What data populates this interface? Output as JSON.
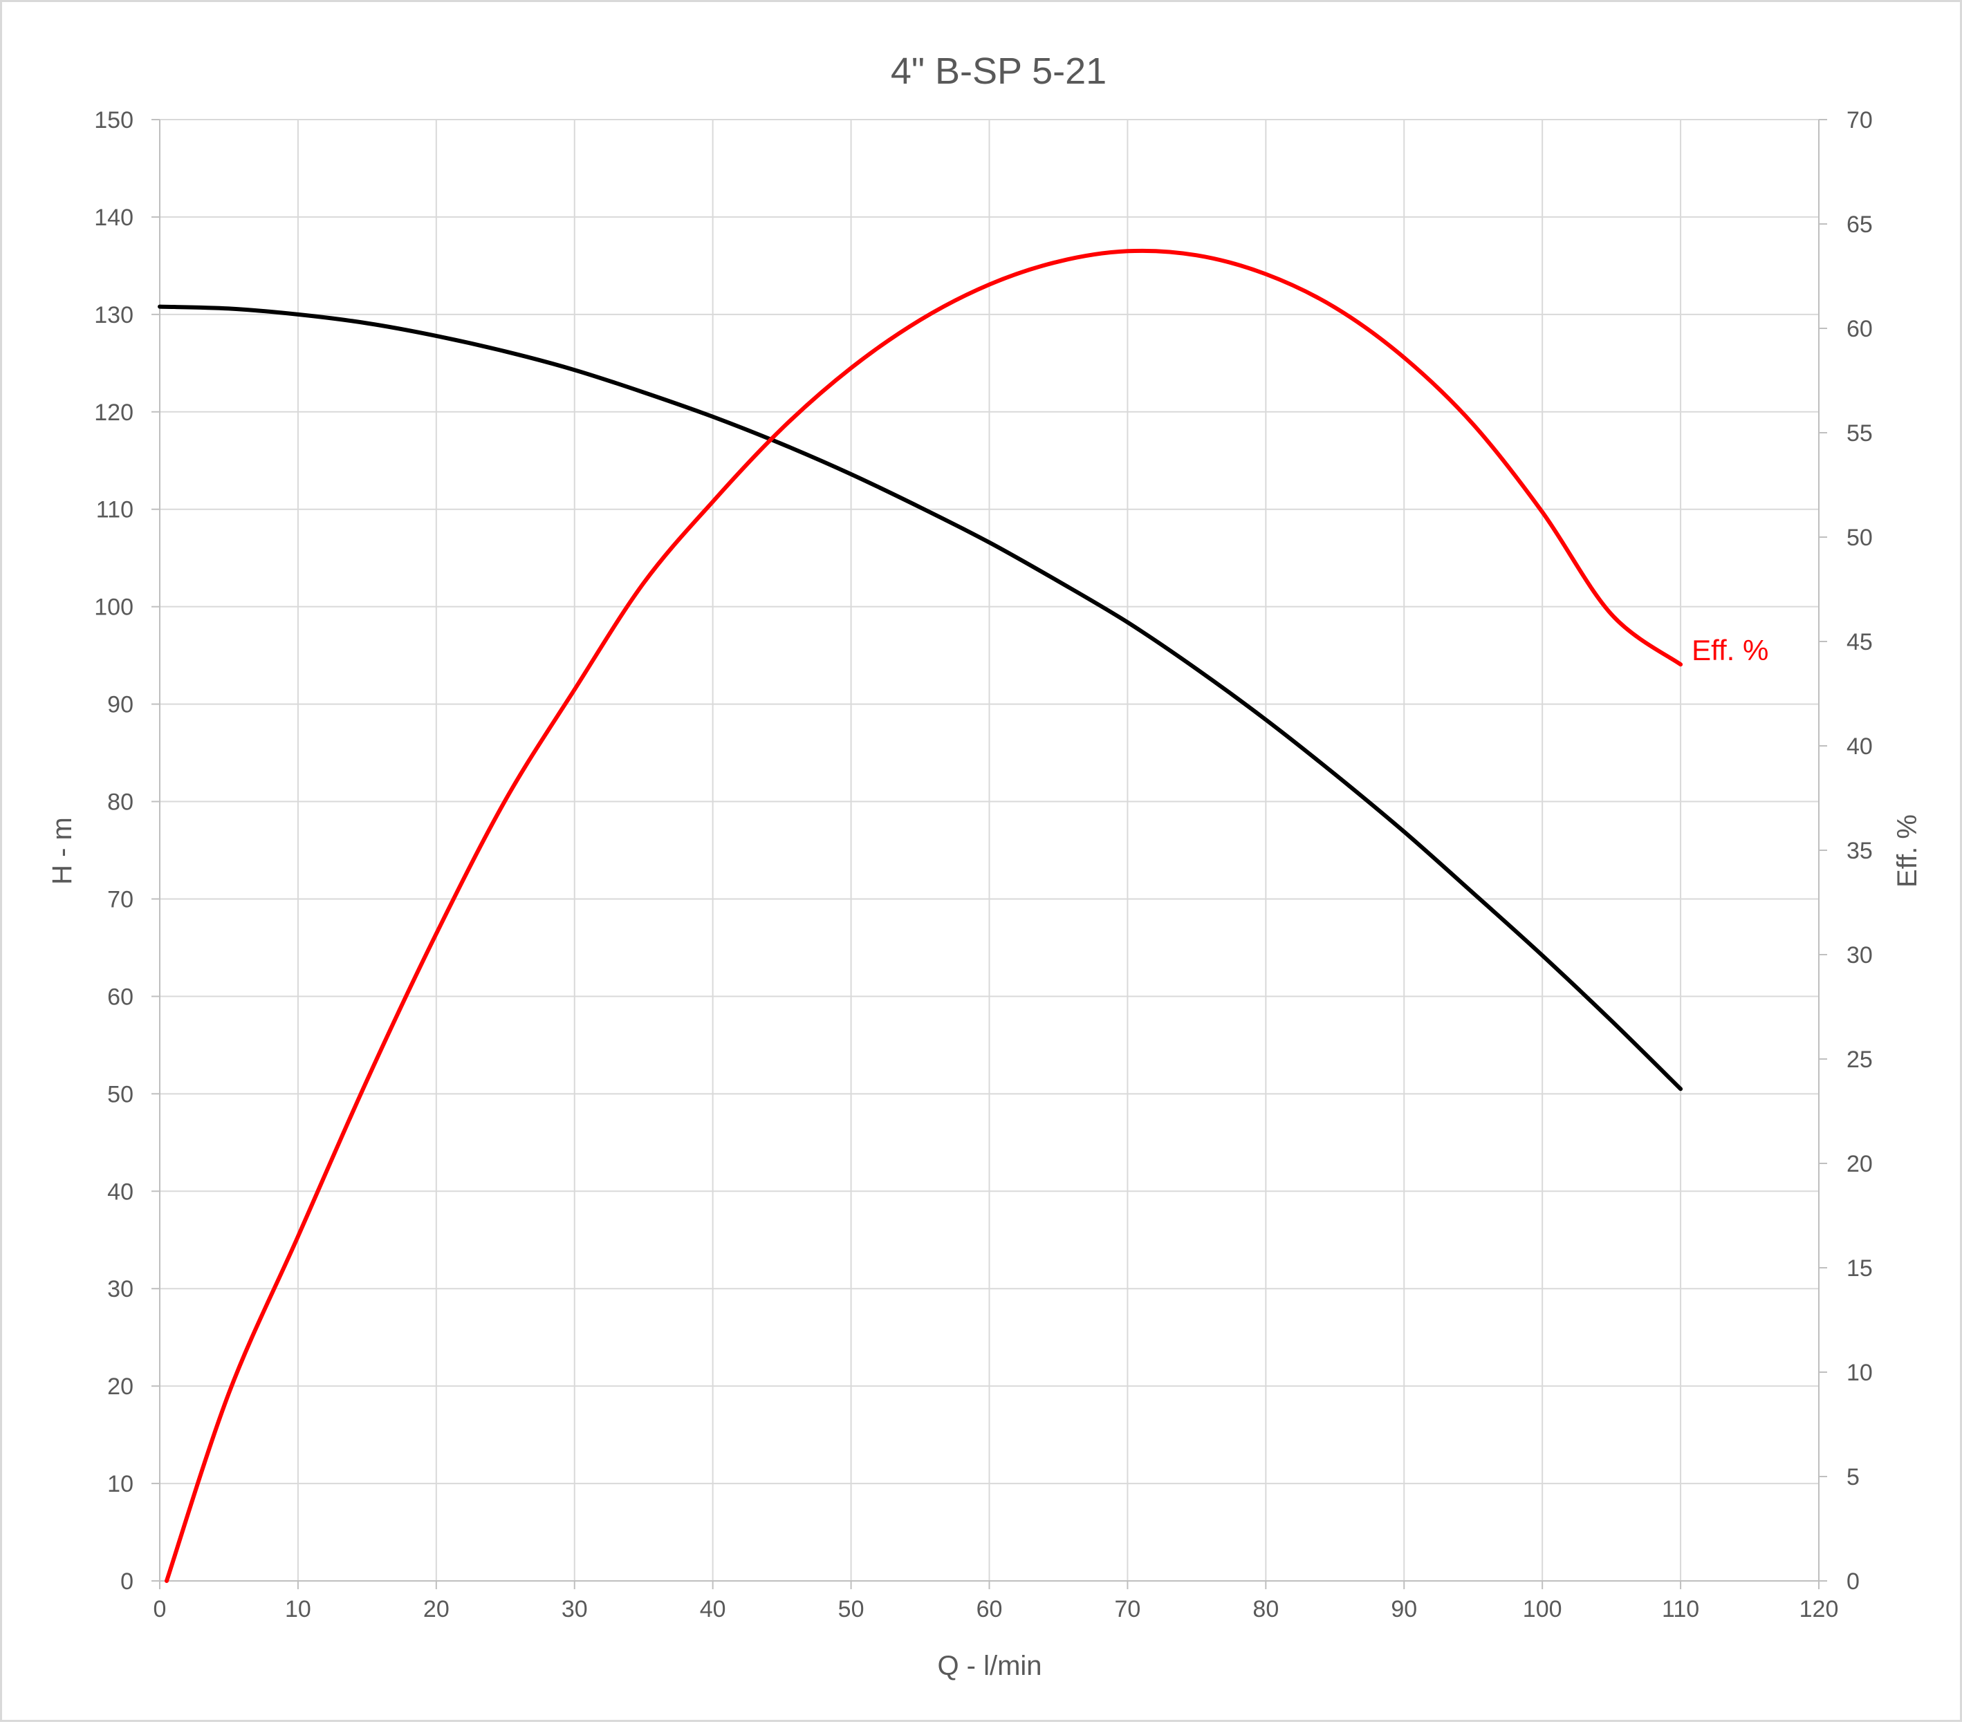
{
  "chart_data": {
    "type": "line",
    "title": "4\" B-SP 5-21",
    "xlabel": "Q - l/min",
    "ylabel": "H - m",
    "y2label": "Eff. %",
    "xlim": [
      0,
      120
    ],
    "ylim": [
      0,
      150
    ],
    "y2lim": [
      0,
      70
    ],
    "x_ticks": [
      "0",
      "10",
      "20",
      "30",
      "40",
      "50",
      "60",
      "70",
      "80",
      "90",
      "100",
      "110",
      "120"
    ],
    "y_ticks": [
      "0",
      "10",
      "20",
      "30",
      "40",
      "50",
      "60",
      "70",
      "80",
      "90",
      "100",
      "110",
      "120",
      "130",
      "140",
      "150"
    ],
    "y2_ticks": [
      "0",
      "5",
      "10",
      "15",
      "20",
      "25",
      "30",
      "35",
      "40",
      "45",
      "50",
      "55",
      "60",
      "65",
      "70"
    ],
    "grid": true,
    "series": [
      {
        "name": "",
        "axis": "left",
        "color": "#000000",
        "x": [
          0,
          5,
          10,
          15,
          20,
          25,
          30,
          35,
          40,
          45,
          50,
          55,
          60,
          65,
          70,
          75,
          80,
          85,
          90,
          95,
          100,
          105,
          110
        ],
        "y": [
          130.8,
          130.6,
          130.0,
          129.1,
          127.8,
          126.2,
          124.3,
          122.0,
          119.5,
          116.7,
          113.6,
          110.2,
          106.6,
          102.6,
          98.4,
          93.6,
          88.4,
          82.8,
          76.9,
          70.6,
          64.2,
          57.5,
          50.5
        ]
      },
      {
        "name": "Eff. %",
        "axis": "right",
        "color": "#ff0000",
        "x": [
          0.5,
          5,
          10,
          15,
          20,
          25,
          30,
          35,
          40,
          45,
          50,
          55,
          60,
          65,
          70,
          75,
          80,
          85,
          90,
          95,
          100,
          105,
          110
        ],
        "y": [
          0.0,
          9.0,
          16.5,
          24.0,
          31.0,
          37.4,
          42.7,
          47.8,
          51.7,
          55.2,
          58.1,
          60.4,
          62.1,
          63.2,
          63.7,
          63.5,
          62.6,
          61.0,
          58.6,
          55.4,
          51.2,
          46.3,
          43.9
        ]
      }
    ],
    "annotations": [
      "Eff. %"
    ]
  }
}
